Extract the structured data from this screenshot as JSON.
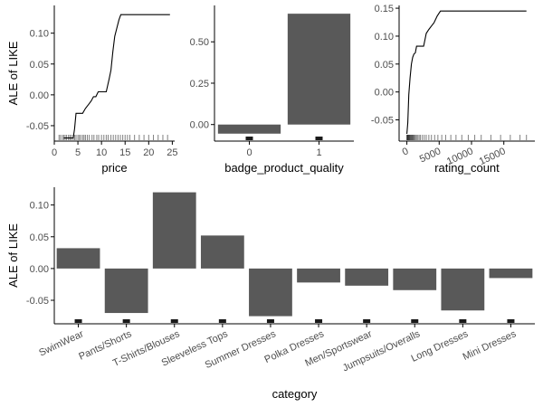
{
  "colors": {
    "bar": "#595959",
    "line": "#000000",
    "rug": "#1a1a1a"
  },
  "chart_data": [
    {
      "panel": "price",
      "type": "line",
      "xlabel": "price",
      "ylabel": "ALE of LIKE",
      "xlim": [
        0,
        25.5
      ],
      "ylim": [
        -0.075,
        0.145
      ],
      "xticks": [
        0,
        5,
        10,
        15,
        20,
        25
      ],
      "yticks": [
        -0.05,
        0.0,
        0.05,
        0.1
      ],
      "ytick_labels": [
        "-0.05",
        "0.00",
        "0.05",
        "0.10"
      ],
      "x": [
        2.0,
        3.0,
        3.5,
        4.0,
        4.3,
        4.6,
        5.5,
        6.0,
        6.6,
        7.2,
        7.8,
        8.3,
        8.8,
        9.3,
        10.0,
        11.0,
        11.6,
        12.0,
        12.4,
        12.8,
        13.3,
        13.7,
        14.1,
        14.6,
        15.3,
        16.5,
        18.0,
        20.0,
        24.5
      ],
      "y": [
        -0.07,
        -0.07,
        -0.07,
        -0.07,
        -0.055,
        -0.03,
        -0.03,
        -0.03,
        -0.022,
        -0.016,
        -0.01,
        -0.003,
        -0.003,
        0.005,
        0.005,
        0.005,
        0.025,
        0.04,
        0.07,
        0.095,
        0.11,
        0.122,
        0.13,
        0.13,
        0.13,
        0.13,
        0.13,
        0.13,
        0.13
      ],
      "rug": [
        1.0,
        1.3,
        1.7,
        2.0,
        2.3,
        2.6,
        3.0,
        3.3,
        3.6,
        4.0,
        4.3,
        4.6,
        5.0,
        5.3,
        5.6,
        6.0,
        6.3,
        6.6,
        7.0,
        7.4,
        8.0,
        8.4,
        9.0,
        9.4,
        10.0,
        10.5,
        11.0,
        11.4,
        12.0,
        12.5,
        13.0,
        13.5,
        14.0,
        14.5,
        15.0,
        15.5,
        16.0,
        17.0,
        18.0,
        19.0,
        20.0,
        21.0,
        22.0,
        23.0,
        24.0
      ]
    },
    {
      "panel": "badge_product_quality",
      "type": "bar",
      "xlabel": "badge_product_quality",
      "ylabel": "",
      "categories": [
        "0",
        "1"
      ],
      "values": [
        -0.055,
        0.67
      ],
      "ylim": [
        -0.1,
        0.72
      ],
      "yticks": [
        0.0,
        0.25,
        0.5
      ],
      "ytick_labels": [
        "0.00",
        "0.25",
        "0.50"
      ]
    },
    {
      "panel": "rating_count",
      "type": "line",
      "xlabel": "rating_count",
      "ylabel": "",
      "xlim": [
        -1200,
        19800
      ],
      "ylim": [
        -0.088,
        0.155
      ],
      "xticks": [
        0,
        5000,
        10000,
        15000
      ],
      "yticks": [
        -0.05,
        0.0,
        0.05,
        0.1,
        0.15
      ],
      "ytick_labels": [
        "-0.05",
        "0.00",
        "0.05",
        "0.10",
        "0.15"
      ],
      "x": [
        0,
        150,
        300,
        500,
        700,
        900,
        1100,
        1300,
        1500,
        1800,
        2200,
        2600,
        3000,
        3400,
        3800,
        4200,
        4700,
        5200,
        6000,
        8000,
        12000,
        16000,
        18500
      ],
      "y": [
        -0.075,
        -0.055,
        -0.005,
        0.025,
        0.05,
        0.062,
        0.068,
        0.07,
        0.082,
        0.082,
        0.082,
        0.082,
        0.105,
        0.112,
        0.118,
        0.124,
        0.136,
        0.145,
        0.145,
        0.145,
        0.145,
        0.145,
        0.145
      ],
      "rug": [
        0,
        40,
        80,
        120,
        160,
        200,
        260,
        320,
        380,
        440,
        500,
        580,
        660,
        740,
        820,
        900,
        1000,
        1100,
        1200,
        1350,
        1500,
        1700,
        1900,
        2100,
        2400,
        2700,
        3000,
        3400,
        3800,
        4300,
        4800,
        5400,
        6000,
        6800,
        7600,
        8500,
        9500,
        10500,
        11500,
        13000,
        14500,
        16000,
        17500,
        18500
      ]
    },
    {
      "panel": "category",
      "type": "bar",
      "xlabel": "category",
      "ylabel": "ALE of LIKE",
      "categories": [
        "SwimWear",
        "Pants/Shorts",
        "T-Shirts/Blouses",
        "Sleeveless Tops",
        "Summer Dresses",
        "Polka Dresses",
        "Men/Sportswear",
        "Jumpsuits/Overalls",
        "Long Dresses",
        "Mini Dresses"
      ],
      "values": [
        0.032,
        -0.07,
        0.12,
        0.052,
        -0.075,
        -0.022,
        -0.027,
        -0.034,
        -0.066,
        -0.015
      ],
      "ylim": [
        -0.087,
        0.128
      ],
      "yticks": [
        -0.05,
        0.0,
        0.05,
        0.1
      ],
      "ytick_labels": [
        "-0.05",
        "0.00",
        "0.05",
        "0.10"
      ]
    }
  ]
}
